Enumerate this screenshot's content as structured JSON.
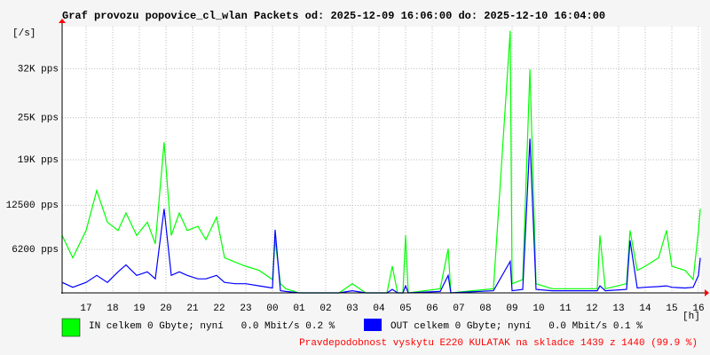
{
  "chart_data": {
    "type": "line",
    "title": "Graf provozu popovice_cl_wlan Packets od: 2025-12-09 16:06:00 do: 2025-12-10 16:04:00",
    "y_label": "[/s]",
    "x_label": "[h]",
    "xlim": [
      16.1,
      40.1
    ],
    "xticks": [
      {
        "value": 17,
        "label": "17"
      },
      {
        "value": 18,
        "label": "18"
      },
      {
        "value": 19,
        "label": "19"
      },
      {
        "value": 20,
        "label": "20"
      },
      {
        "value": 21,
        "label": "21"
      },
      {
        "value": 22,
        "label": "22"
      },
      {
        "value": 23,
        "label": "23"
      },
      {
        "value": 24,
        "label": "00"
      },
      {
        "value": 25,
        "label": "01"
      },
      {
        "value": 26,
        "label": "02"
      },
      {
        "value": 27,
        "label": "03"
      },
      {
        "value": 28,
        "label": "04"
      },
      {
        "value": 29,
        "label": "05"
      },
      {
        "value": 30,
        "label": "06"
      },
      {
        "value": 31,
        "label": "07"
      },
      {
        "value": 32,
        "label": "08"
      },
      {
        "value": 33,
        "label": "09"
      },
      {
        "value": 34,
        "label": "10"
      },
      {
        "value": 35,
        "label": "11"
      },
      {
        "value": 36,
        "label": "12"
      },
      {
        "value": 37,
        "label": "13"
      },
      {
        "value": 38,
        "label": "14"
      },
      {
        "value": 39,
        "label": "15"
      },
      {
        "value": 40,
        "label": "16"
      }
    ],
    "ylim": [
      0,
      38000
    ],
    "yticks": [
      {
        "value": 6200,
        "label": "6200 pps"
      },
      {
        "value": 12500,
        "label": "12500 pps"
      },
      {
        "value": 19000,
        "label": "19K pps"
      },
      {
        "value": 25000,
        "label": "25K pps"
      },
      {
        "value": 32000,
        "label": "32K pps"
      }
    ],
    "grid": true,
    "x": [
      16.1,
      16.5,
      17.0,
      17.4,
      17.8,
      18.2,
      18.5,
      18.9,
      19.3,
      19.6,
      19.93,
      20.2,
      20.5,
      20.8,
      21.2,
      21.5,
      21.9,
      22.2,
      22.6,
      23.0,
      23.5,
      24.0,
      24.1,
      24.3,
      24.5,
      25.0,
      26.5,
      27.0,
      27.5,
      28.3,
      28.5,
      28.7,
      28.9,
      29.0,
      29.1,
      30.3,
      30.6,
      30.7,
      32.3,
      32.93,
      33.0,
      33.4,
      33.67,
      33.9,
      34.5,
      35.5,
      36.2,
      36.3,
      36.5,
      37.3,
      37.43,
      37.7,
      38.0,
      38.5,
      38.8,
      39.0,
      39.5,
      39.8,
      40.0,
      40.07
    ],
    "series": [
      {
        "name": "IN celkem 0 Gbyte; nyní   0.0 Mbit/s 0.2 %",
        "color": "#00ff00",
        "values": [
          8200,
          5000,
          8900,
          14600,
          10100,
          8900,
          11400,
          8200,
          10100,
          7000,
          21500,
          8200,
          11400,
          8900,
          9500,
          7600,
          10800,
          5000,
          4400,
          3800,
          3200,
          1900,
          7600,
          1300,
          600,
          0,
          0,
          1300,
          0,
          0,
          3800,
          0,
          0,
          8200,
          0,
          600,
          6300,
          0,
          600,
          37400,
          1300,
          1900,
          31900,
          1300,
          600,
          600,
          600,
          8200,
          600,
          1300,
          8900,
          3200,
          3800,
          5000,
          8900,
          3800,
          3200,
          1900,
          8900,
          12000
        ]
      },
      {
        "name": "OUT celkem 0 Gbyte; nyní   0.0 Mbit/s 0.1 %",
        "color": "#0000ff",
        "values": [
          1500,
          800,
          1500,
          2500,
          1500,
          3000,
          4000,
          2500,
          3000,
          2000,
          12000,
          2500,
          3000,
          2500,
          2000,
          2000,
          2500,
          1500,
          1300,
          1300,
          1000,
          700,
          9000,
          300,
          200,
          0,
          0,
          300,
          0,
          0,
          500,
          0,
          0,
          1000,
          0,
          200,
          2500,
          0,
          300,
          4500,
          300,
          500,
          22000,
          500,
          300,
          300,
          300,
          1000,
          300,
          500,
          7500,
          700,
          800,
          900,
          1000,
          800,
          700,
          800,
          2500,
          5000
        ]
      }
    ],
    "note": "Pravdepodobnost vyskytu E220 KULATAK na skladce 1439 z 1440 (99.9 %)"
  }
}
